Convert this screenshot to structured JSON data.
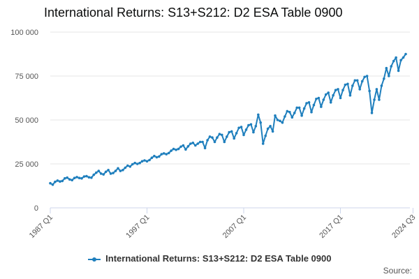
{
  "title": "International Returns: S13+S212: D2 ESA Table 0900",
  "source_label": "Source:",
  "series_color": "#1f7fbd",
  "chart_data": {
    "type": "line",
    "title": "International Returns: S13+S212: D2 ESA Table 0900",
    "x_start": "1987 Q1",
    "x_end": "2024 Q3",
    "x_tick_labels": [
      "1987 Q1",
      "1997 Q1",
      "2007 Q1",
      "2017 Q1",
      "2024 Q3"
    ],
    "x_tick_indices": [
      0,
      40,
      80,
      120,
      150
    ],
    "y_ticks": [
      0,
      25000,
      50000,
      75000,
      100000
    ],
    "y_tick_labels": [
      "0",
      "25 000",
      "50 000",
      "75 000",
      "100 000"
    ],
    "ylim": [
      0,
      100000
    ],
    "grid": true,
    "legend_position": "bottom",
    "series": [
      {
        "name": "International Returns: S13+S212: D2 ESA Table 0900",
        "values": [
          14000,
          13200,
          14800,
          15500,
          15000,
          15300,
          16800,
          17200,
          16200,
          15800,
          17000,
          17500,
          17000,
          16800,
          17800,
          18000,
          17400,
          17200,
          18800,
          20000,
          21000,
          19500,
          19000,
          20500,
          21500,
          19500,
          19800,
          21000,
          22500,
          21000,
          21500,
          22800,
          24000,
          23500,
          24800,
          25500,
          25000,
          25500,
          26500,
          27000,
          26500,
          27200,
          28500,
          29500,
          28800,
          29200,
          30500,
          31000,
          30500,
          31200,
          32500,
          33500,
          33000,
          33500,
          34800,
          35500,
          33200,
          35000,
          36500,
          37000,
          35500,
          36500,
          37500,
          37500,
          34000,
          38500,
          40500,
          40000,
          37500,
          40000,
          42000,
          41500,
          37500,
          40500,
          43000,
          43500,
          39500,
          42500,
          45500,
          46000,
          41500,
          44500,
          47000,
          47500,
          43000,
          46500,
          53000,
          48500,
          36500,
          41000,
          45000,
          46500,
          43500,
          52500,
          50000,
          49500,
          48500,
          52000,
          55000,
          54500,
          51500,
          54000,
          57000,
          57000,
          52500,
          56500,
          59500,
          60000,
          54500,
          58500,
          62000,
          62500,
          57500,
          61500,
          64500,
          65500,
          60000,
          64000,
          67000,
          67500,
          62500,
          67000,
          70000,
          70500,
          64000,
          69500,
          72500,
          72500,
          67500,
          72000,
          74500,
          75000,
          66500,
          54000,
          61500,
          67500,
          61500,
          69500,
          73500,
          79500,
          75000,
          80500,
          83500,
          85500,
          78000,
          84000,
          85500,
          87500
        ]
      }
    ]
  },
  "legend": {
    "label": "International Returns: S13+S212: D2 ESA Table 0900"
  }
}
